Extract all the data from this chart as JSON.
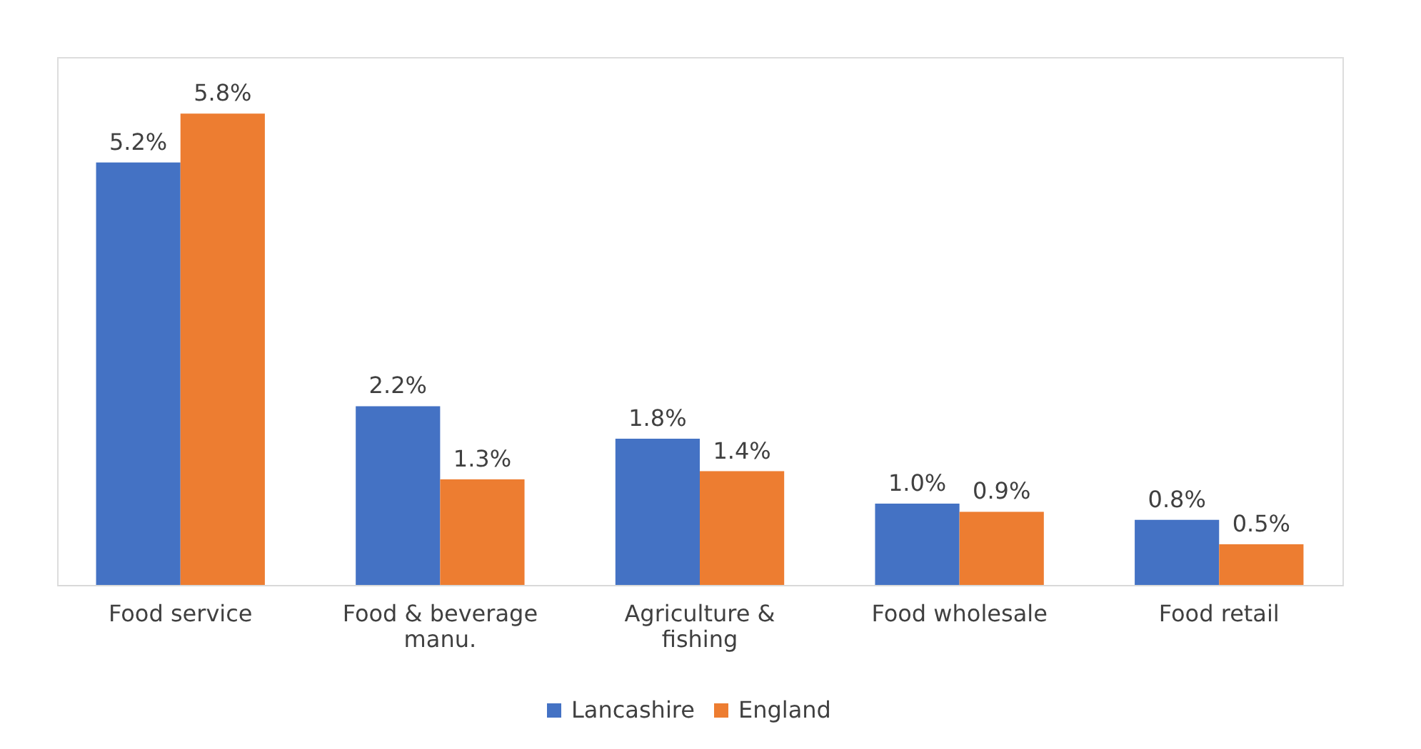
{
  "chart_data": {
    "type": "bar",
    "categories": [
      "Food service",
      "Food & beverage manu.",
      "Agriculture & fishing",
      "Food wholesale",
      "Food retail"
    ],
    "series": [
      {
        "name": "Lancashire",
        "color": "#4472c4",
        "values": [
          5.2,
          2.2,
          1.8,
          1.0,
          0.8
        ],
        "value_labels": [
          "5.2%",
          "2.2%",
          "1.8%",
          "1.0%",
          "0.8%"
        ]
      },
      {
        "name": "England",
        "color": "#ed7d31",
        "values": [
          5.8,
          1.3,
          1.4,
          0.9,
          0.5
        ],
        "value_labels": [
          "5.8%",
          "1.3%",
          "1.4%",
          "0.9%",
          "0.5%"
        ]
      }
    ],
    "grid": false,
    "legend": "bottom"
  }
}
